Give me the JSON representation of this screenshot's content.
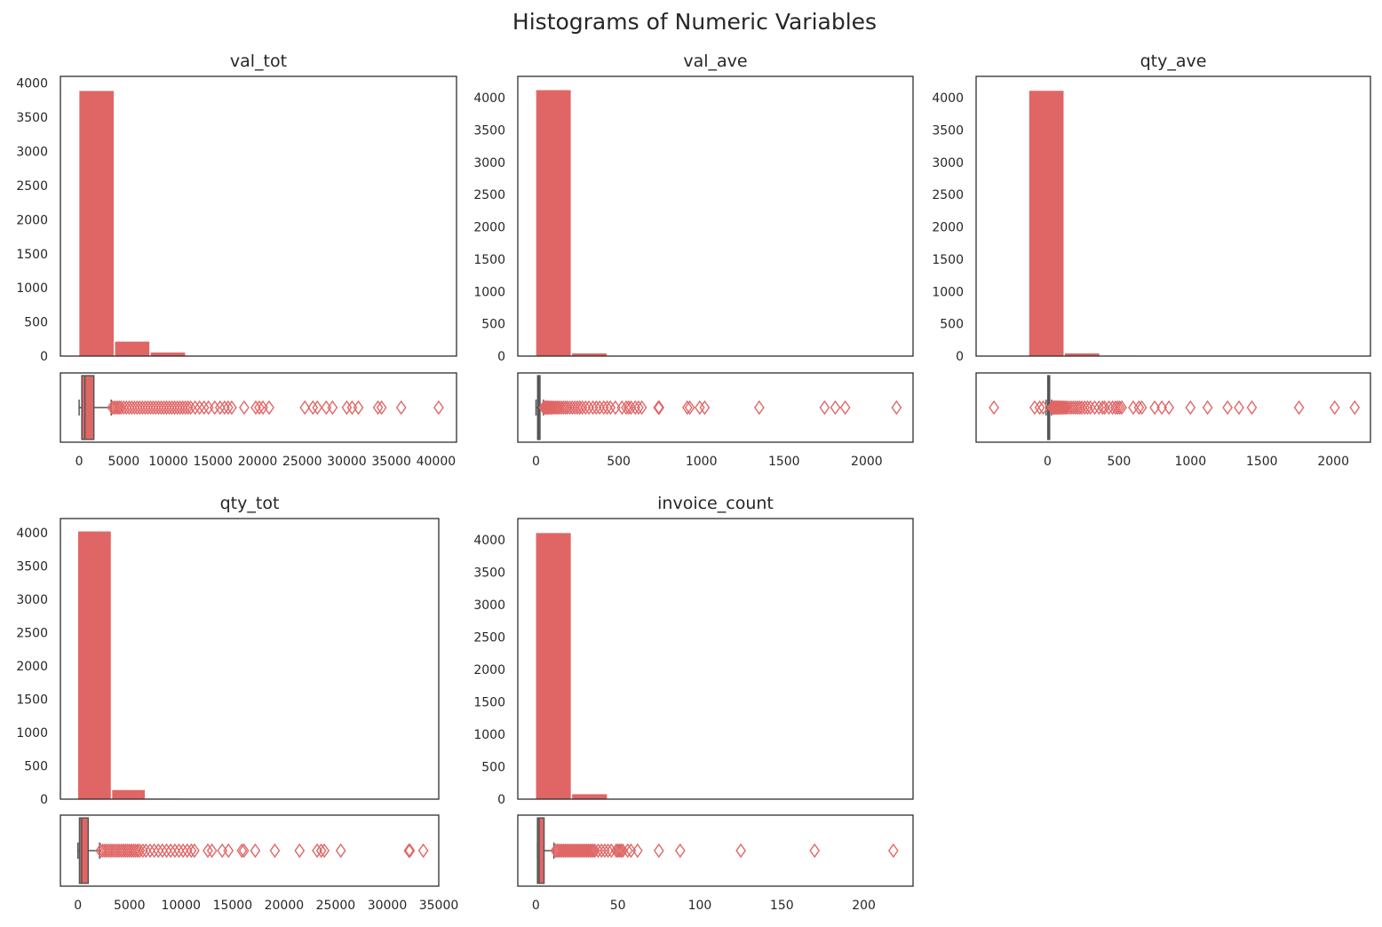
{
  "figure": {
    "title": "Histograms of Numeric Variables",
    "bar_color": "#e06666",
    "box_color": "#e06666",
    "box_line_color": "#555555"
  },
  "chart_data": [
    {
      "type": "bar",
      "subtype": "histogram+boxplot",
      "title": "val_tot",
      "bin_edges": [
        0,
        4000,
        8000,
        12000,
        16000,
        20000,
        24000,
        28000,
        32000,
        36000,
        40000
      ],
      "counts": [
        3890,
        215,
        55,
        5,
        5,
        6,
        3,
        5,
        4,
        2
      ],
      "ylim": [
        0,
        4100
      ],
      "yticks": [
        "0",
        "500",
        "1000",
        "1500",
        "2000",
        "2500",
        "3000",
        "3500",
        "4000"
      ],
      "xlim": [
        -2100,
        42300
      ],
      "xticks": [
        "0",
        "5000",
        "10000",
        "15000",
        "20000",
        "25000",
        "30000",
        "35000",
        "40000"
      ],
      "box": {
        "min": 0,
        "q1": 300,
        "median": 650,
        "q3": 1650,
        "whisker_high": 3600
      },
      "outliers": [
        3700,
        3900,
        4100,
        4300,
        4500,
        4700,
        5000,
        5300,
        5600,
        5900,
        6200,
        6500,
        6800,
        7100,
        7400,
        7700,
        8000,
        8300,
        8600,
        8900,
        9200,
        9500,
        9800,
        10100,
        10400,
        10700,
        11000,
        11300,
        11600,
        11900,
        12200,
        12500,
        13000,
        13500,
        14000,
        14500,
        15200,
        15800,
        16300,
        16700,
        17100,
        18500,
        19800,
        20200,
        20600,
        21300,
        25300,
        26200,
        26700,
        27700,
        28400,
        30000,
        30600,
        31300,
        33500,
        33900,
        36100,
        40300
      ]
    },
    {
      "type": "bar",
      "subtype": "histogram+boxplot",
      "title": "val_ave",
      "bin_edges": [
        0,
        217,
        434,
        651,
        868,
        1085,
        1302,
        1519,
        1736,
        1953,
        2170
      ],
      "counts": [
        4120,
        45,
        5,
        3,
        2,
        1,
        1,
        0,
        1,
        3
      ],
      "ylim": [
        0,
        4330
      ],
      "yticks": [
        "0",
        "500",
        "1000",
        "1500",
        "2000",
        "2500",
        "3000",
        "3500",
        "4000"
      ],
      "xlim": [
        -110,
        2280
      ],
      "xticks": [
        "0",
        "500",
        "1000",
        "1500",
        "2000"
      ],
      "box": {
        "min": 0,
        "q1": 10,
        "median": 17,
        "q3": 24,
        "whisker_high": 45
      },
      "outliers": [
        47,
        52,
        58,
        64,
        70,
        77,
        84,
        92,
        100,
        110,
        120,
        130,
        140,
        152,
        165,
        178,
        190,
        205,
        220,
        235,
        250,
        265,
        280,
        300,
        320,
        345,
        365,
        385,
        410,
        430,
        450,
        480,
        520,
        545,
        560,
        575,
        600,
        620,
        640,
        740,
        745,
        915,
        930,
        990,
        1020,
        1350,
        1745,
        1810,
        1870,
        2180
      ]
    },
    {
      "type": "bar",
      "subtype": "histogram+boxplot",
      "title": "qty_ave",
      "bin_edges": [
        -130,
        120,
        370,
        620,
        870,
        1120,
        1370,
        1620,
        1870,
        2120,
        2370
      ],
      "counts": [
        4110,
        45,
        8,
        4,
        2,
        2,
        1,
        1,
        1,
        1
      ],
      "ylim": [
        0,
        4330
      ],
      "yticks": [
        "0",
        "500",
        "1000",
        "1500",
        "2000",
        "2500",
        "3000",
        "3500",
        "4000"
      ],
      "xlim": [
        -500,
        2260
      ],
      "xticks": [
        "0",
        "500",
        "1000",
        "1500",
        "2000"
      ],
      "box": {
        "min": -10,
        "q1": 2,
        "median": 6,
        "q3": 12,
        "whisker_high": 28
      },
      "outliers": [
        -375,
        -90,
        -55,
        -30,
        30,
        34,
        38,
        44,
        50,
        56,
        62,
        68,
        75,
        82,
        90,
        98,
        106,
        115,
        125,
        135,
        150,
        165,
        180,
        195,
        210,
        225,
        240,
        260,
        280,
        300,
        330,
        360,
        385,
        400,
        430,
        455,
        475,
        490,
        505,
        520,
        600,
        640,
        660,
        750,
        800,
        850,
        1000,
        1120,
        1260,
        1340,
        1430,
        1760,
        2010,
        2150
      ]
    },
    {
      "type": "bar",
      "subtype": "histogram+boxplot",
      "title": "qty_tot",
      "bin_edges": [
        0,
        3300,
        6600,
        9900,
        13200,
        16500,
        19800,
        23100,
        26400,
        29700,
        33000
      ],
      "counts": [
        4020,
        140,
        12,
        2,
        1,
        0,
        2,
        1,
        0,
        2
      ],
      "ylim": [
        0,
        4210
      ],
      "yticks": [
        "0",
        "500",
        "1000",
        "1500",
        "2000",
        "2500",
        "3000",
        "3500",
        "4000"
      ],
      "xlim": [
        -1700,
        35000
      ],
      "xticks": [
        "0",
        "5000",
        "10000",
        "15000",
        "20000",
        "25000",
        "30000",
        "35000"
      ],
      "box": {
        "min": 0,
        "q1": 150,
        "median": 360,
        "q3": 1000,
        "whisker_high": 2100
      },
      "outliers": [
        2200,
        2400,
        2600,
        2800,
        3000,
        3200,
        3400,
        3600,
        3800,
        4000,
        4200,
        4400,
        4600,
        4800,
        5000,
        5200,
        5400,
        5600,
        5800,
        6000,
        6300,
        6600,
        7000,
        7400,
        7800,
        8200,
        8600,
        9000,
        9400,
        9800,
        10200,
        10600,
        11000,
        11300,
        12600,
        13000,
        14000,
        14600,
        15900,
        16100,
        17200,
        19100,
        21500,
        23200,
        23600,
        23900,
        25500,
        32100,
        32200,
        33500
      ]
    },
    {
      "type": "bar",
      "subtype": "histogram+boxplot",
      "title": "invoice_count",
      "bin_edges": [
        0,
        22,
        44,
        66,
        88,
        110,
        132,
        154,
        176,
        198,
        220
      ],
      "counts": [
        4110,
        80,
        10,
        3,
        0,
        0,
        1,
        0,
        1,
        1
      ],
      "ylim": [
        0,
        4330
      ],
      "yticks": [
        "0",
        "500",
        "1000",
        "1500",
        "2000",
        "2500",
        "3000",
        "3500",
        "4000"
      ],
      "xlim": [
        -11,
        230
      ],
      "xticks": [
        "0",
        "50",
        "100",
        "150",
        "200"
      ],
      "box": {
        "min": 1,
        "q1": 1,
        "median": 2,
        "q3": 5,
        "whisker_high": 11
      },
      "outliers": [
        12,
        13,
        14,
        15,
        16,
        17,
        18,
        19,
        20,
        21,
        22,
        23,
        24,
        25,
        26,
        27,
        28,
        29,
        30,
        31,
        32,
        33,
        34,
        35,
        36,
        38,
        40,
        42,
        44,
        46,
        49,
        50,
        51,
        52,
        53,
        56,
        58,
        62,
        75,
        88,
        125,
        170,
        218
      ]
    }
  ]
}
